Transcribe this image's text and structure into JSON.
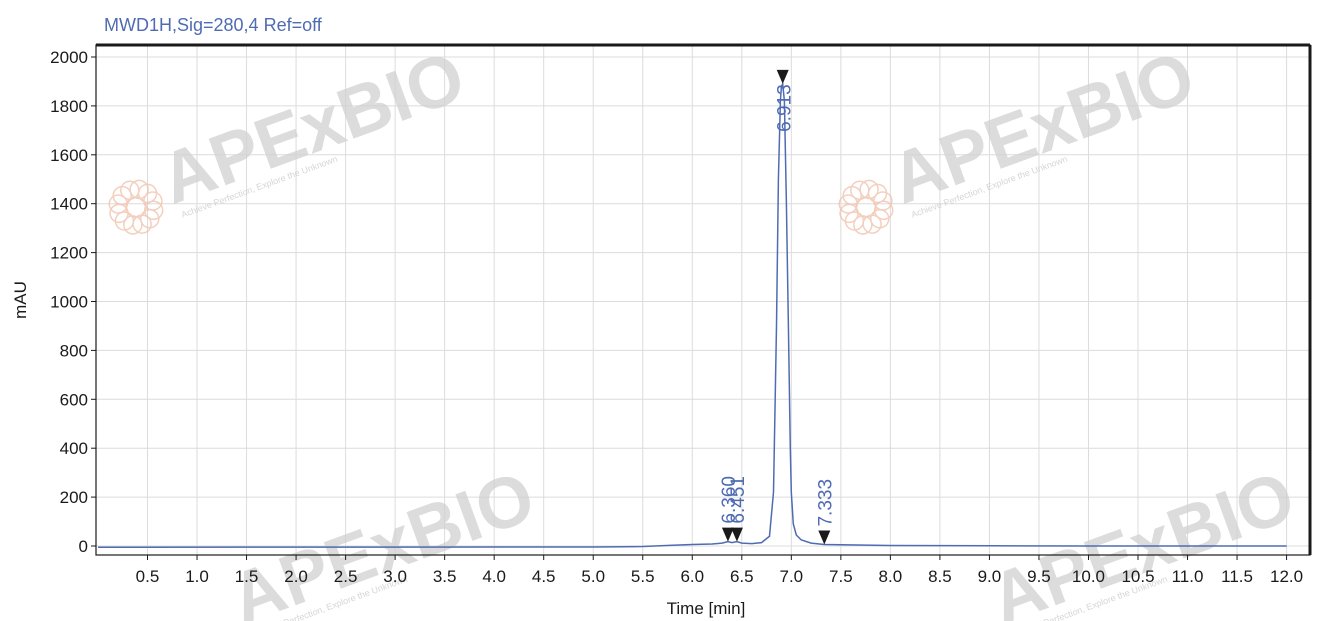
{
  "chart_data": {
    "type": "line",
    "title": "MWD1H,Sig=280,4  Ref=off",
    "xlabel": "Time [min]",
    "ylabel": "mAU",
    "xlim": [
      0,
      12.05
    ],
    "ylim": [
      -40,
      2040
    ],
    "x_ticks": [
      0.5,
      1.0,
      1.5,
      2.0,
      2.5,
      3.0,
      3.5,
      4.0,
      4.5,
      5.0,
      5.5,
      6.0,
      6.5,
      7.0,
      7.5,
      8.0,
      8.5,
      9.0,
      9.5,
      10.0,
      10.5,
      11.0,
      11.5,
      12.0
    ],
    "x_tick_labels": [
      "0.5",
      "1.0",
      "1.5",
      "2.0",
      "2.5",
      "3.0",
      "3.5",
      "4.0",
      "4.5",
      "5.0",
      "5.5",
      "6.0",
      "6.5",
      "7.0",
      "7.5",
      "8.0",
      "8.5",
      "9.0",
      "9.5",
      "10.0",
      "10.5",
      "11.0",
      "11.5",
      "12.0"
    ],
    "y_ticks": [
      0,
      200,
      400,
      600,
      800,
      1000,
      1200,
      1400,
      1600,
      1800,
      2000
    ],
    "y_tick_labels": [
      "0",
      "200",
      "400",
      "600",
      "800",
      "1000",
      "1200",
      "1400",
      "1600",
      "1800",
      "2000"
    ],
    "grid": true,
    "line_color": "#4f6bb3",
    "series": [
      {
        "x": [
          0.0,
          5.0,
          5.5,
          5.8,
          6.0,
          6.2,
          6.3,
          6.36,
          6.4,
          6.451,
          6.5,
          6.6,
          6.7,
          6.78,
          6.82,
          6.85,
          6.87,
          6.89,
          6.9,
          6.913,
          6.93,
          6.95,
          6.97,
          6.99,
          7.0,
          7.02,
          7.05,
          7.1,
          7.2,
          7.333,
          7.5,
          8.0,
          9.0,
          10.0,
          12.0
        ],
        "y": [
          -5,
          -4,
          -2,
          3,
          6,
          8,
          12,
          18,
          14,
          18,
          12,
          10,
          14,
          40,
          220,
          900,
          1500,
          1820,
          1880,
          1890,
          1820,
          1400,
          900,
          400,
          220,
          90,
          45,
          25,
          12,
          6,
          5,
          2,
          1,
          0,
          0
        ]
      }
    ],
    "peaks": [
      {
        "time": 6.36,
        "label": "6.360"
      },
      {
        "time": 6.451,
        "label": "6.451"
      },
      {
        "time": 6.913,
        "label": "6.913"
      },
      {
        "time": 7.333,
        "label": "7.333"
      }
    ]
  },
  "watermark": {
    "brand": "APExBIO",
    "slogan": "Achieve Perfection, Explore the Unknown",
    "colors": {
      "brand": "#d1d1d1",
      "accent": "#f0c0aa",
      "slogan": "#c8c8c8"
    }
  }
}
